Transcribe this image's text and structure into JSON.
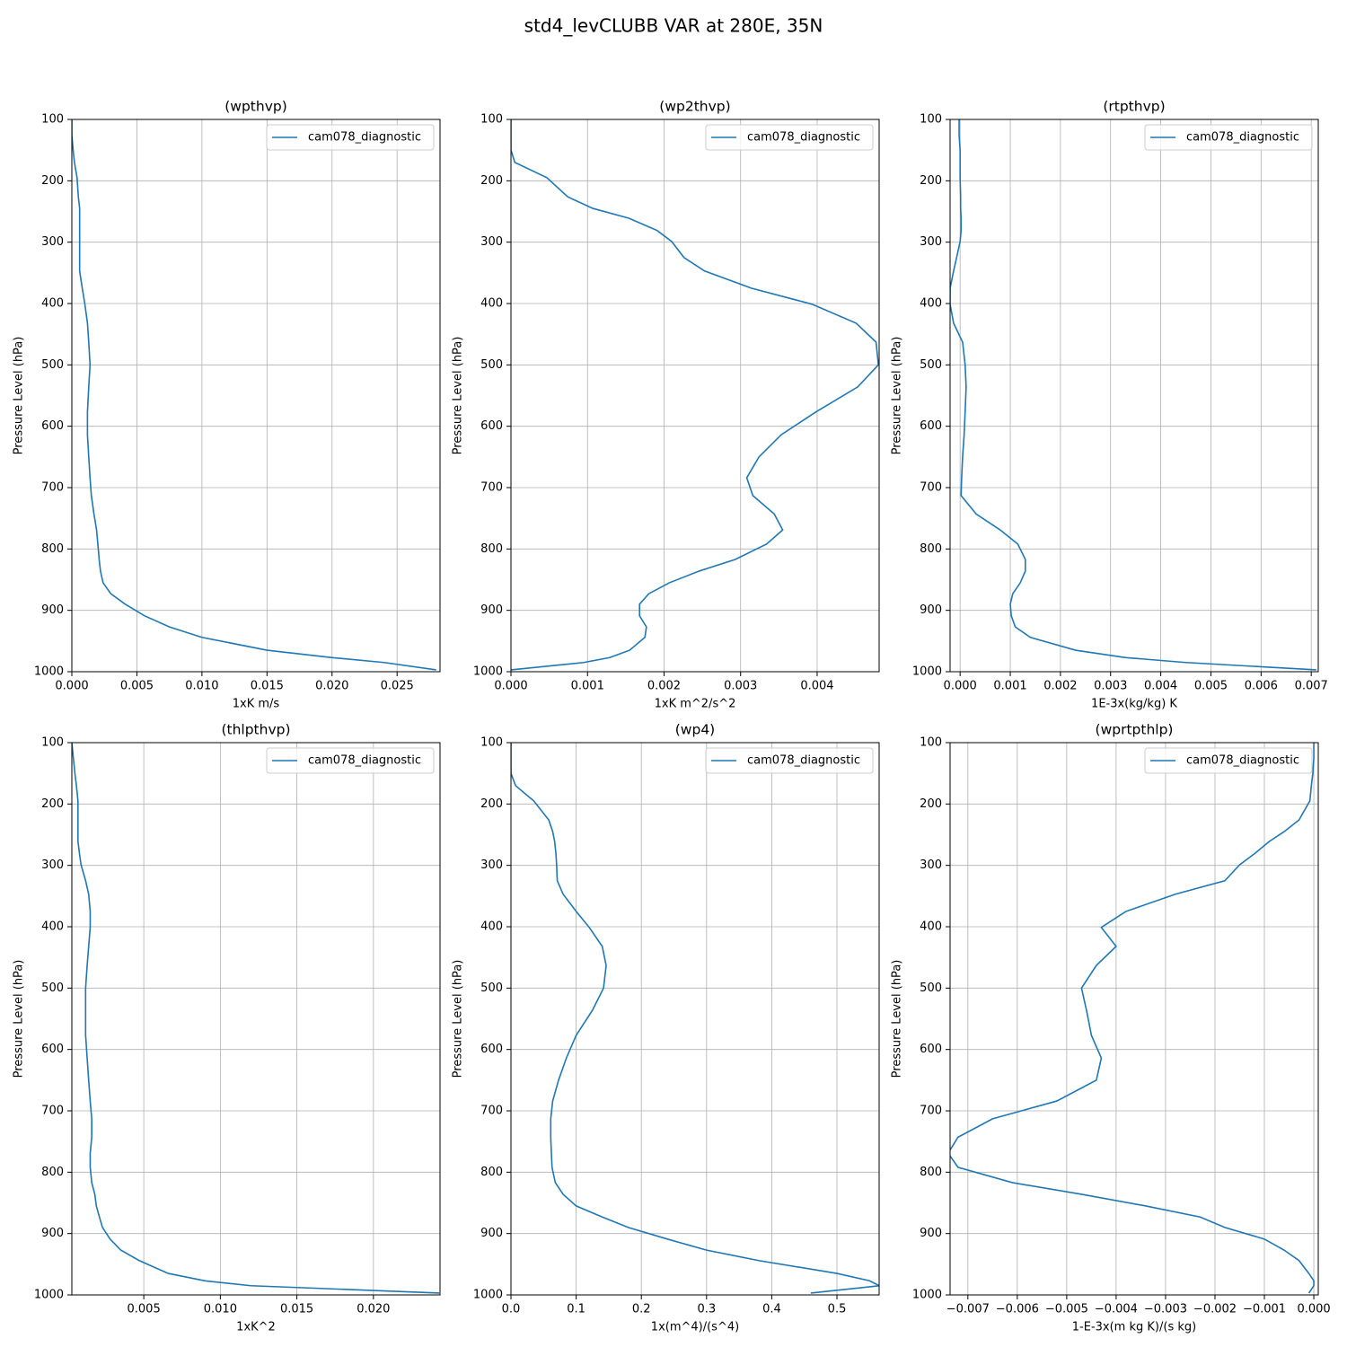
{
  "title": "std4_levCLUBB VAR at 280E, 35N",
  "chart_data": [
    {
      "type": "line",
      "title": "(wpthvp)",
      "xlabel": "1xK m/s",
      "ylabel": "Pressure Level (hPa)",
      "y": [
        100,
        125,
        150,
        170,
        195,
        226,
        245,
        261,
        281,
        299,
        325,
        347,
        375,
        401,
        432,
        463,
        500,
        536,
        577,
        614,
        650,
        684,
        713,
        743,
        769,
        792,
        817,
        836,
        855,
        873,
        890,
        909,
        927,
        944,
        965,
        977,
        985,
        997
      ],
      "series": [
        {
          "name": "cam078_diagnostic",
          "color": "#1f77b4",
          "values": [
            0,
            0,
            0.0001,
            0.0002,
            0.0004,
            0.0005,
            0.0006,
            0.0006,
            0.0006,
            0.0006,
            0.0006,
            0.0006,
            0.0008,
            0.001,
            0.0012,
            0.0013,
            0.0014,
            0.0013,
            0.0012,
            0.0012,
            0.0013,
            0.0014,
            0.0015,
            0.0017,
            0.0019,
            0.002,
            0.0021,
            0.0022,
            0.0024,
            0.003,
            0.0041,
            0.0056,
            0.0075,
            0.01,
            0.015,
            0.02,
            0.024,
            0.028
          ]
        }
      ],
      "xlim": [
        0,
        0.0283
      ],
      "xticks": [
        {
          "value": 0,
          "label": "0.000"
        },
        0.005,
        {
          "value": 0.01,
          "label": "0.010"
        },
        0.015,
        {
          "value": 0.02,
          "label": "0.020"
        },
        0.025
      ],
      "ylim": [
        1000,
        100
      ],
      "yticks": [
        100,
        200,
        300,
        400,
        500,
        600,
        700,
        800,
        900,
        1000
      ],
      "grid": true,
      "legend": "upper right"
    },
    {
      "type": "line",
      "title": "(wp2thvp)",
      "xlabel": "1xK m^2/s^2",
      "ylabel": "Pressure Level (hPa)",
      "y": [
        100,
        125,
        150,
        170,
        195,
        226,
        245,
        261,
        281,
        299,
        325,
        347,
        375,
        401,
        432,
        463,
        500,
        536,
        577,
        614,
        650,
        684,
        713,
        743,
        769,
        792,
        817,
        836,
        855,
        873,
        890,
        909,
        927,
        944,
        965,
        977,
        985,
        997
      ],
      "series": [
        {
          "name": "cam078_diagnostic",
          "color": "#1f77b4",
          "values": [
            0,
            0,
            0,
            5e-05,
            0.00047,
            0.00074,
            0.00107,
            0.00154,
            0.00191,
            0.0021,
            0.00226,
            0.00253,
            0.00314,
            0.00393,
            0.00451,
            0.00477,
            0.0048,
            0.00453,
            0.00398,
            0.00353,
            0.00324,
            0.00308,
            0.00316,
            0.00344,
            0.00355,
            0.00334,
            0.00293,
            0.00246,
            0.00207,
            0.0018,
            0.00168,
            0.00168,
            0.00177,
            0.00175,
            0.00155,
            0.00129,
            0.00095,
            0
          ]
        }
      ],
      "xlim": [
        0,
        0.00481
      ],
      "xticks": [
        {
          "value": 0,
          "label": "0.000"
        },
        0.001,
        0.002,
        0.003,
        0.004
      ],
      "ylim": [
        1000,
        100
      ],
      "yticks": [
        100,
        200,
        300,
        400,
        500,
        600,
        700,
        800,
        900,
        1000
      ],
      "grid": true,
      "legend": "upper right"
    },
    {
      "type": "line",
      "title": "(rtpthvp)",
      "xlabel": "1E-3x(kg/kg) K",
      "ylabel": "Pressure Level (hPa)",
      "y": [
        100,
        125,
        150,
        170,
        195,
        226,
        245,
        261,
        281,
        299,
        325,
        347,
        375,
        401,
        432,
        463,
        500,
        536,
        577,
        614,
        650,
        684,
        713,
        743,
        769,
        792,
        817,
        836,
        855,
        873,
        890,
        909,
        927,
        944,
        965,
        977,
        985,
        997
      ],
      "series": [
        {
          "name": "cam078_diagnostic",
          "color": "#1f77b4",
          "values": [
            -2e-05,
            -2e-05,
            0,
            0,
            0,
            1e-05,
            1e-05,
            2e-05,
            2e-05,
            0,
            -7e-05,
            -0.00013,
            -0.0002,
            -0.0002,
            -0.00013,
            5e-05,
            0.0001,
            0.00012,
            0.0001,
            8e-05,
            5e-05,
            3e-05,
            2e-05,
            0.00032,
            0.0008,
            0.00115,
            0.0013,
            0.0013,
            0.0012,
            0.00105,
            0.001,
            0.00102,
            0.0011,
            0.0014,
            0.0023,
            0.0033,
            0.0045,
            0.0071
          ]
        }
      ],
      "xlim": [
        -0.0002,
        0.00714
      ],
      "xticks": [
        {
          "value": 0,
          "label": "0.000"
        },
        0.001,
        0.002,
        0.003,
        0.004,
        0.005,
        0.006,
        0.007
      ],
      "ylim": [
        1000,
        100
      ],
      "yticks": [
        100,
        200,
        300,
        400,
        500,
        600,
        700,
        800,
        900,
        1000
      ],
      "grid": true,
      "legend": "upper right"
    },
    {
      "type": "line",
      "title": "(thlpthvp)",
      "xlabel": "1xK^2",
      "ylabel": "Pressure Level (hPa)",
      "y": [
        100,
        125,
        150,
        170,
        195,
        226,
        245,
        261,
        281,
        299,
        325,
        347,
        375,
        401,
        432,
        463,
        500,
        536,
        577,
        614,
        650,
        684,
        713,
        743,
        769,
        792,
        817,
        836,
        855,
        873,
        890,
        909,
        927,
        944,
        965,
        977,
        985,
        997
      ],
      "series": [
        {
          "name": "cam078_diagnostic",
          "color": "#1f77b4",
          "values": [
            0.0003,
            0.0004,
            0.0005,
            0.0006,
            0.0007,
            0.0007,
            0.0007,
            0.0007,
            0.0008,
            0.0009,
            0.0012,
            0.0014,
            0.0015,
            0.0015,
            0.0014,
            0.0013,
            0.0012,
            0.0012,
            0.0012,
            0.0013,
            0.0014,
            0.0015,
            0.0016,
            0.0016,
            0.0015,
            0.0015,
            0.0016,
            0.0018,
            0.0019,
            0.0021,
            0.0023,
            0.0028,
            0.0035,
            0.0047,
            0.0066,
            0.009,
            0.012,
            0.0243
          ]
        }
      ],
      "xlim": [
        0.0003,
        0.02435
      ],
      "xticks": [
        0.005,
        {
          "value": 0.01,
          "label": "0.010"
        },
        0.015,
        {
          "value": 0.02,
          "label": "0.020"
        }
      ],
      "ylim": [
        1000,
        100
      ],
      "yticks": [
        100,
        200,
        300,
        400,
        500,
        600,
        700,
        800,
        900,
        1000
      ],
      "grid": true,
      "legend": "upper right"
    },
    {
      "type": "line",
      "title": "(wp4)",
      "xlabel": "1x(m^4)/(s^4)",
      "ylabel": "Pressure Level (hPa)",
      "y": [
        100,
        125,
        150,
        170,
        195,
        226,
        245,
        261,
        281,
        299,
        325,
        347,
        375,
        401,
        432,
        463,
        500,
        536,
        577,
        614,
        650,
        684,
        713,
        743,
        769,
        792,
        817,
        836,
        855,
        873,
        890,
        909,
        927,
        944,
        965,
        977,
        985,
        997
      ],
      "series": [
        {
          "name": "cam078_diagnostic",
          "color": "#1f77b4",
          "values": [
            0,
            0,
            0,
            0.007,
            0.035,
            0.058,
            0.064,
            0.067,
            0.069,
            0.07,
            0.071,
            0.08,
            0.1,
            0.12,
            0.14,
            0.146,
            0.142,
            0.125,
            0.1,
            0.085,
            0.073,
            0.064,
            0.061,
            0.061,
            0.062,
            0.063,
            0.068,
            0.08,
            0.1,
            0.14,
            0.18,
            0.24,
            0.3,
            0.38,
            0.5,
            0.55,
            0.565,
            0.46
          ]
        }
      ],
      "xlim": [
        0,
        0.5647
      ],
      "xticks": [
        {
          "value": 0,
          "label": "0.0"
        },
        0.1,
        0.2,
        0.3,
        0.4,
        0.5
      ],
      "ylim": [
        1000,
        100
      ],
      "yticks": [
        100,
        200,
        300,
        400,
        500,
        600,
        700,
        800,
        900,
        1000
      ],
      "grid": true,
      "legend": "upper right"
    },
    {
      "type": "line",
      "title": "(wprtpthlp)",
      "xlabel": "1-E-3x(m kg K)/(s kg)",
      "ylabel": "Pressure Level (hPa)",
      "y": [
        100,
        125,
        150,
        170,
        195,
        226,
        245,
        261,
        281,
        299,
        325,
        347,
        375,
        401,
        432,
        463,
        500,
        536,
        577,
        614,
        650,
        684,
        713,
        743,
        769,
        792,
        817,
        836,
        855,
        873,
        890,
        909,
        927,
        944,
        965,
        977,
        985,
        997
      ],
      "series": [
        {
          "name": "cam078_diagnostic",
          "color": "#1f77b4",
          "values": [
            0,
            0,
            -2e-05,
            -5e-05,
            -8e-05,
            -0.0003,
            -0.0006,
            -0.0009,
            -0.0012,
            -0.0015,
            -0.0018,
            -0.0028,
            -0.0038,
            -0.0043,
            -0.004,
            -0.0044,
            -0.0047,
            -0.0046,
            -0.0045,
            -0.0043,
            -0.0044,
            -0.0052,
            -0.0065,
            -0.0072,
            -0.0074,
            -0.0072,
            -0.0061,
            -0.0047,
            -0.0034,
            -0.0023,
            -0.0018,
            -0.001,
            -0.0006,
            -0.0003,
            -0.0001,
            0,
            0,
            -0.0001
          ]
        }
      ],
      "xlim": [
        -0.00736,
        9e-05
      ],
      "xticks": [
        {
          "value": -0.007,
          "label": "−0.007"
        },
        {
          "value": -0.006,
          "label": "−0.006"
        },
        {
          "value": -0.005,
          "label": "−0.005"
        },
        {
          "value": -0.004,
          "label": "−0.004"
        },
        {
          "value": -0.003,
          "label": "−0.003"
        },
        {
          "value": -0.002,
          "label": "−0.002"
        },
        {
          "value": -0.001,
          "label": "−0.001"
        },
        {
          "value": 0,
          "label": "0.000"
        }
      ],
      "ylim": [
        1000,
        100
      ],
      "yticks": [
        100,
        200,
        300,
        400,
        500,
        600,
        700,
        800,
        900,
        1000
      ],
      "grid": true,
      "legend": "upper right"
    }
  ]
}
